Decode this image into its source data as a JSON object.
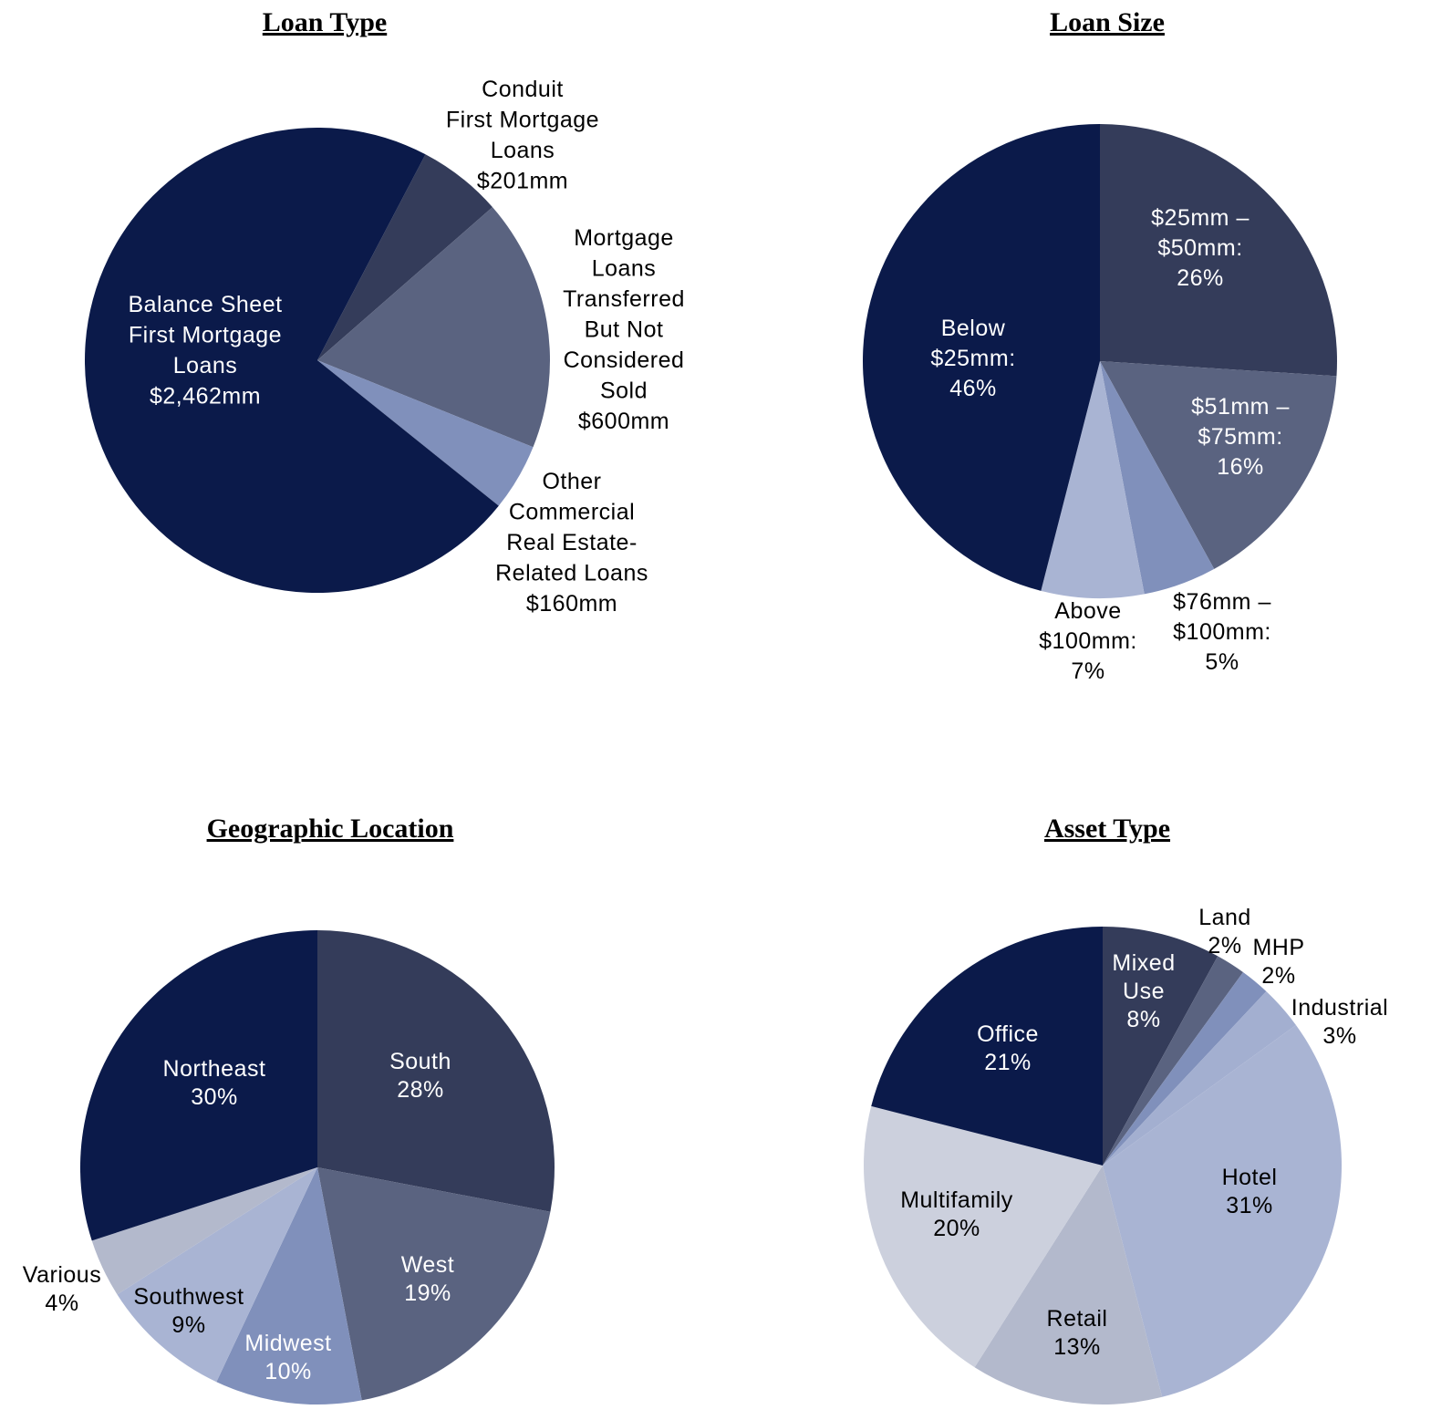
{
  "chart_data": [
    {
      "type": "pie",
      "title": "Loan Type",
      "unit": "$mm",
      "start_angle_deg": 27.7,
      "slices": [
        {
          "label": [
            "Conduit",
            "First Mortgage",
            "Loans",
            "$201mm"
          ],
          "value": 201,
          "color": "#343c5a",
          "text_color": "#000000"
        },
        {
          "label": [
            "Mortgage",
            "Loans",
            "Transferred",
            "But Not",
            "Considered",
            "Sold",
            "$600mm"
          ],
          "value": 600,
          "color": "#5a6380",
          "text_color": "#000000"
        },
        {
          "label": [
            "Other",
            "Commercial",
            "Real Estate-",
            "Related Loans",
            "$160mm"
          ],
          "value": 160,
          "color": "#8090bb",
          "text_color": "#000000"
        },
        {
          "label": [
            "Balance Sheet",
            "First Mortgage",
            "Loans",
            "$2,462mm"
          ],
          "value": 2462,
          "color": "#0b1a4a",
          "text_color": "#ffffff"
        }
      ]
    },
    {
      "type": "pie",
      "title": "Loan Size",
      "unit": "%",
      "start_angle_deg": 0,
      "slices": [
        {
          "label": [
            "$25mm –",
            "$50mm:",
            "26%"
          ],
          "value": 26,
          "color": "#343c5a",
          "text_color": "#ffffff"
        },
        {
          "label": [
            "$51mm –",
            "$75mm:",
            "16%"
          ],
          "value": 16,
          "color": "#5a6380",
          "text_color": "#ffffff"
        },
        {
          "label": [
            "$76mm –",
            "$100mm:",
            "5%"
          ],
          "value": 5,
          "color": "#8090bb",
          "text_color": "#000000"
        },
        {
          "label": [
            "Above",
            "$100mm:",
            "7%"
          ],
          "value": 7,
          "color": "#a9b4d3",
          "text_color": "#000000"
        },
        {
          "label": [
            "Below",
            "$25mm:",
            "46%"
          ],
          "value": 46,
          "color": "#0b1a4a",
          "text_color": "#ffffff"
        }
      ]
    },
    {
      "type": "pie",
      "title": "Geographic Location",
      "unit": "%",
      "start_angle_deg": 0,
      "slices": [
        {
          "label": [
            "South",
            "28%"
          ],
          "value": 28,
          "color": "#343c5a",
          "text_color": "#ffffff"
        },
        {
          "label": [
            "West",
            "19%"
          ],
          "value": 19,
          "color": "#5a6380",
          "text_color": "#ffffff"
        },
        {
          "label": [
            "Midwest",
            "10%"
          ],
          "value": 10,
          "color": "#8090bb",
          "text_color": "#ffffff"
        },
        {
          "label": [
            "Southwest",
            "9%"
          ],
          "value": 9,
          "color": "#a9b4d3",
          "text_color": "#000000"
        },
        {
          "label": [
            "Various",
            "4%"
          ],
          "value": 4,
          "color": "#b3b9cc",
          "text_color": "#000000"
        },
        {
          "label": [
            "Northeast",
            "30%"
          ],
          "value": 30,
          "color": "#0b1a4a",
          "text_color": "#ffffff"
        }
      ]
    },
    {
      "type": "pie",
      "title": "Asset Type",
      "unit": "%",
      "start_angle_deg": 0,
      "slices": [
        {
          "label": [
            "Mixed",
            "Use",
            "8%"
          ],
          "value": 8,
          "color": "#343c5a",
          "text_color": "#ffffff"
        },
        {
          "label": [
            "Land",
            "2%"
          ],
          "value": 2,
          "color": "#5a6380",
          "text_color": "#000000"
        },
        {
          "label": [
            "MHP",
            "2%"
          ],
          "value": 2,
          "color": "#8090bb",
          "text_color": "#000000"
        },
        {
          "label": [
            "Industrial",
            "3%"
          ],
          "value": 3,
          "color": "#a3afd0",
          "text_color": "#000000"
        },
        {
          "label": [
            "Hotel",
            "31%"
          ],
          "value": 31,
          "color": "#a9b4d3",
          "text_color": "#000000"
        },
        {
          "label": [
            "Retail",
            "13%"
          ],
          "value": 13,
          "color": "#b3b9cc",
          "text_color": "#000000"
        },
        {
          "label": [
            "Multifamily",
            "20%"
          ],
          "value": 20,
          "color": "#ccd0dd",
          "text_color": "#000000"
        },
        {
          "label": [
            "Office",
            "21%"
          ],
          "value": 21,
          "color": "#0b1a4a",
          "text_color": "#ffffff"
        }
      ]
    }
  ]
}
